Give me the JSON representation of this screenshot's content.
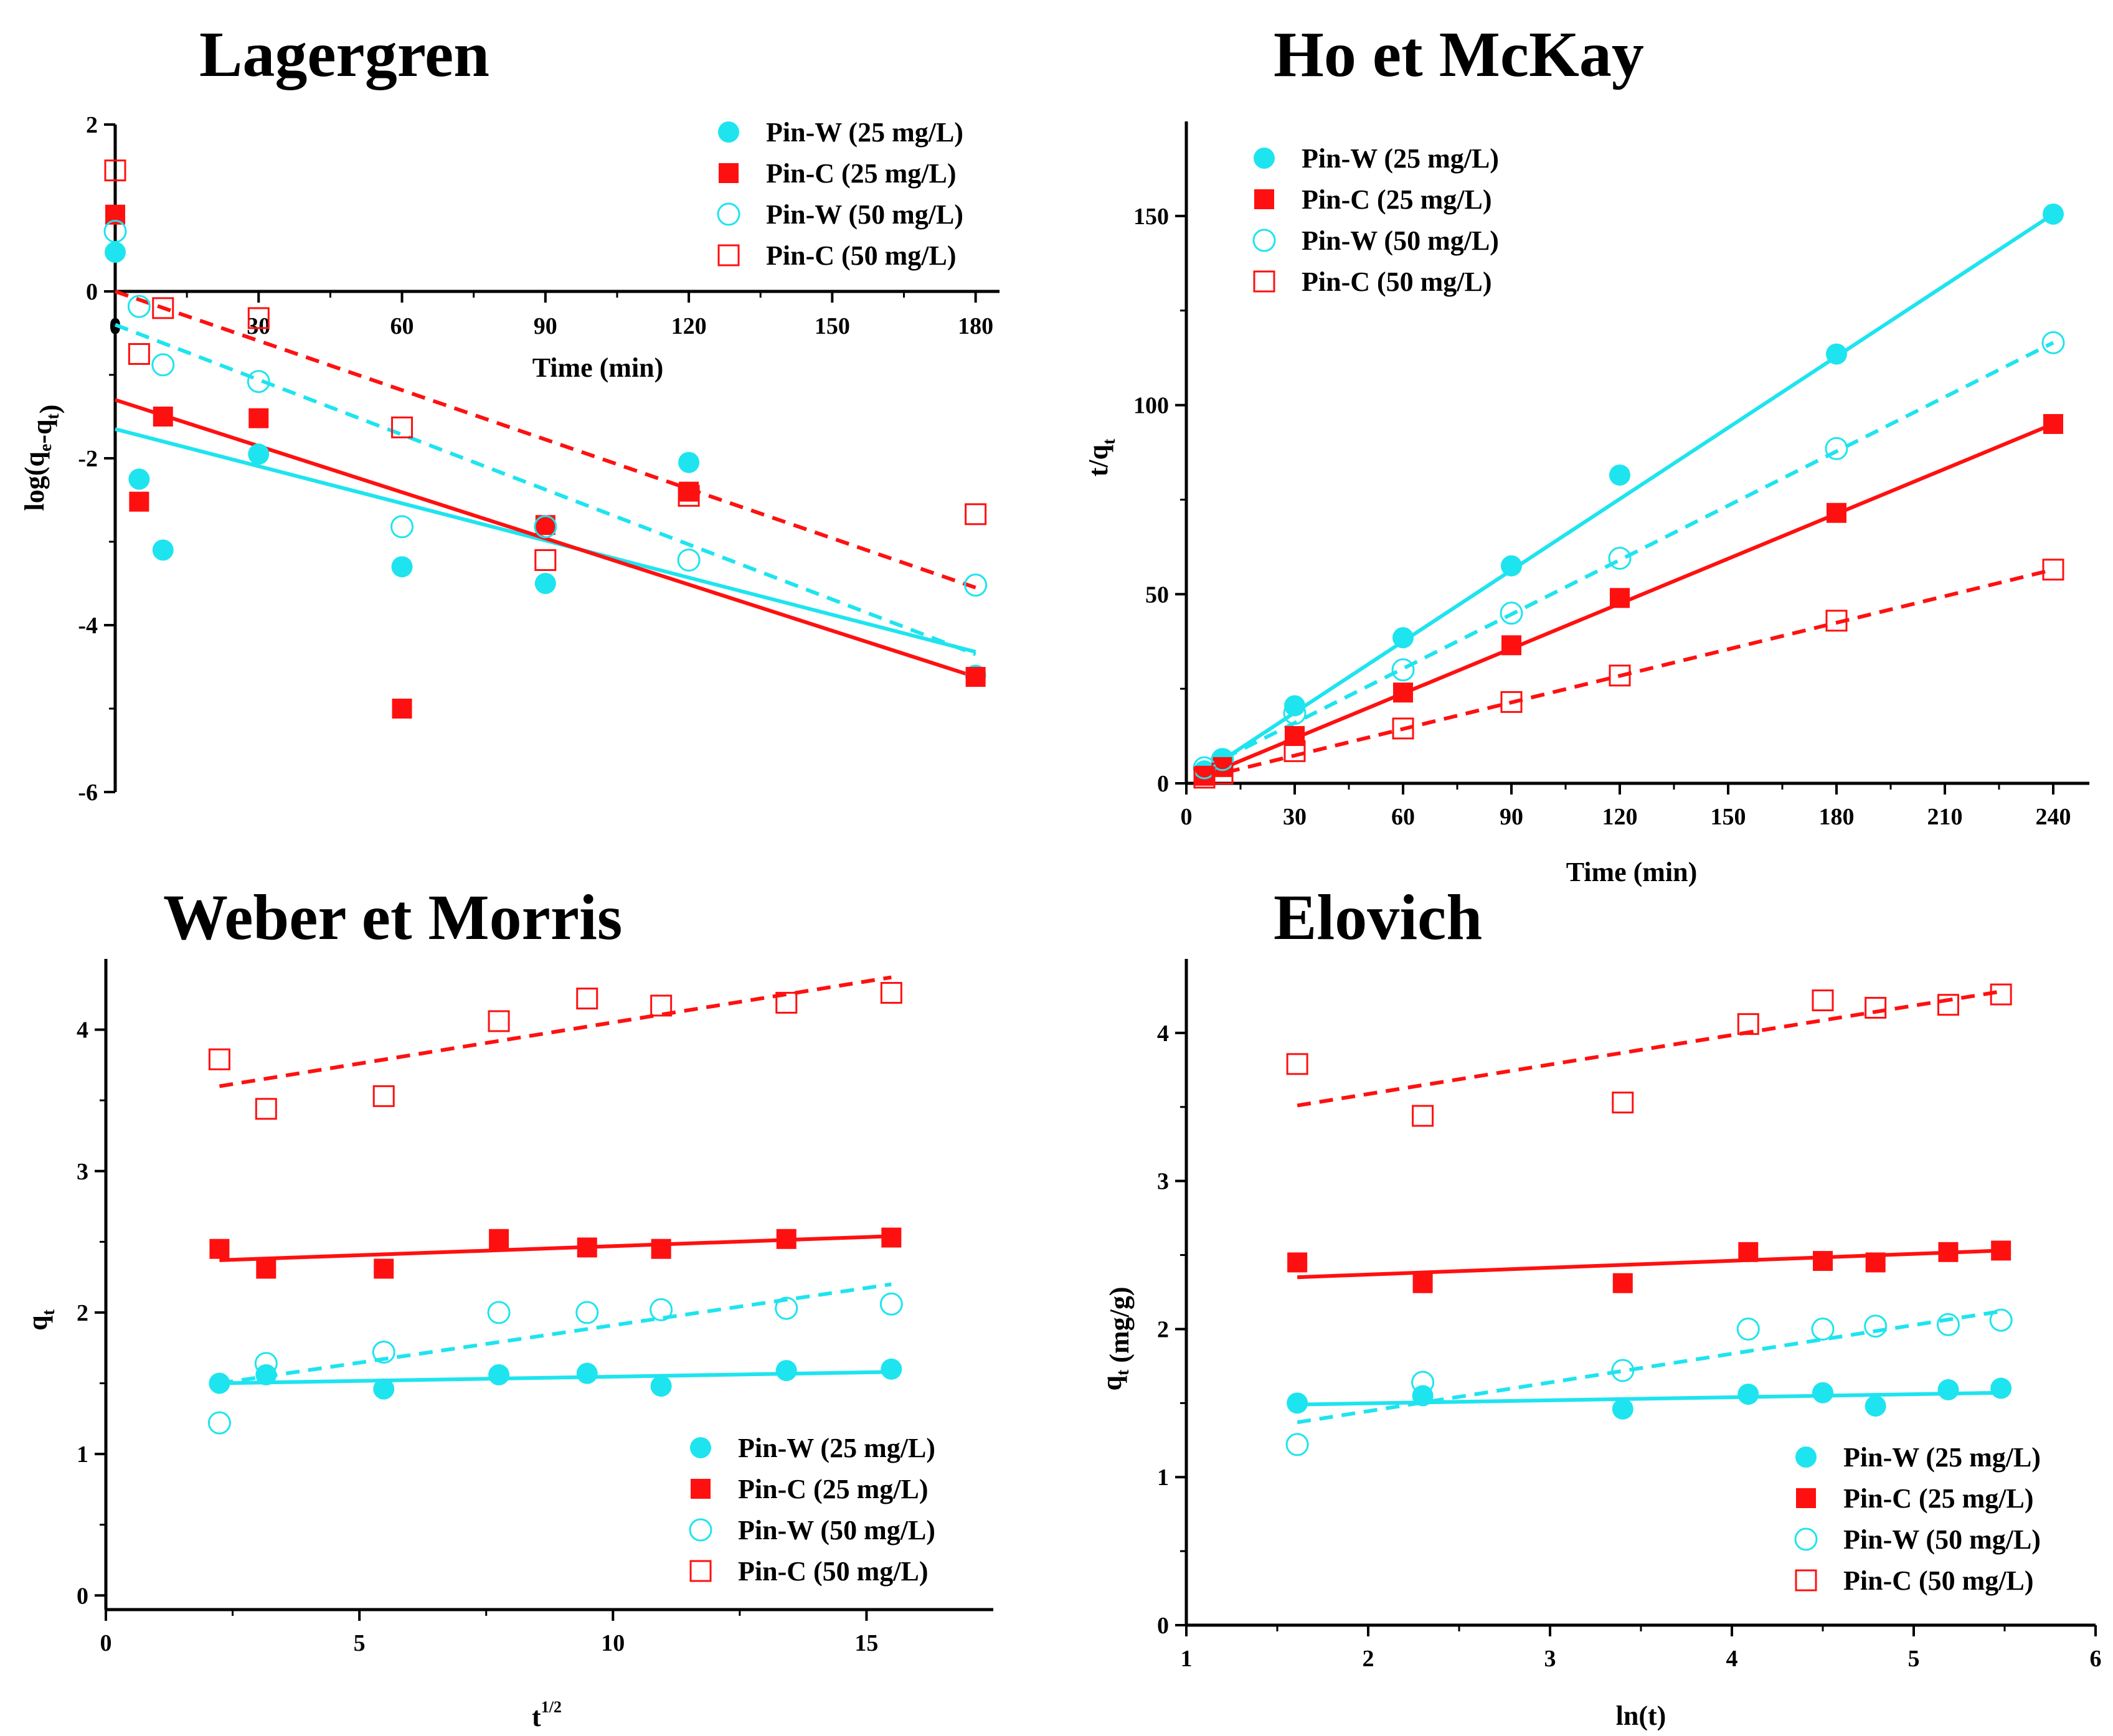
{
  "colors": {
    "cyan": "#1ee4ef",
    "red": "#ff1010",
    "axis": "#000000"
  },
  "legend_labels": [
    "Pin-W (25 mg/L)",
    "Pin-C  (25 mg/L)",
    "Pin-W (50 mg/L)",
    "Pin-C  (50 mg/L)"
  ],
  "chart_data": [
    {
      "id": "lagergren",
      "type": "scatter",
      "title": "Lagergren",
      "xlabel": "Time (min)",
      "ylabel": "log(q_e-q_t)",
      "xlim": [
        0,
        185
      ],
      "ylim": [
        -6,
        2
      ],
      "xticks": [
        0,
        30,
        60,
        90,
        120,
        150,
        180
      ],
      "xtick_labels": [
        "0",
        "30",
        "60",
        "90",
        "120",
        "150",
        "180"
      ],
      "yticks": [
        -6,
        -4,
        -2,
        0,
        2
      ],
      "ytick_labels": [
        "-6",
        "-4",
        "-2",
        "0",
        "2"
      ],
      "legend_position": "top-right",
      "series": [
        {
          "name": "Pin-W (25 mg/L)",
          "marker": "circle-filled",
          "x": [
            0,
            5,
            10,
            30,
            60,
            90,
            120,
            180
          ],
          "y": [
            0.47,
            -2.25,
            -3.1,
            -1.95,
            -3.3,
            -3.5,
            -2.05,
            -4.6
          ],
          "fit": {
            "x": [
              0,
              180
            ],
            "y": [
              -1.65,
              -4.32
            ],
            "dash": false
          }
        },
        {
          "name": "Pin-C  (25 mg/L)",
          "marker": "square-filled",
          "x": [
            0,
            5,
            10,
            30,
            60,
            90,
            120,
            180
          ],
          "y": [
            0.92,
            -2.52,
            -1.5,
            -1.52,
            -5.0,
            -2.8,
            -2.4,
            -4.62
          ],
          "fit": {
            "x": [
              0,
              180
            ],
            "y": [
              -1.3,
              -4.62
            ],
            "dash": false
          }
        },
        {
          "name": "Pin-W (50 mg/L)",
          "marker": "circle-open",
          "x": [
            0,
            5,
            10,
            30,
            60,
            90,
            120,
            180
          ],
          "y": [
            0.72,
            -0.18,
            -0.88,
            -1.08,
            -2.82,
            -2.82,
            -3.22,
            -3.52
          ],
          "fit": {
            "x": [
              0,
              180
            ],
            "y": [
              -0.4,
              -4.35
            ],
            "dash": true
          }
        },
        {
          "name": "Pin-C  (50 mg/L)",
          "marker": "square-open",
          "x": [
            0,
            5,
            10,
            30,
            60,
            90,
            120,
            180
          ],
          "y": [
            1.45,
            -0.75,
            -0.2,
            -0.32,
            -1.63,
            -3.22,
            -2.45,
            -2.67
          ],
          "fit": {
            "x": [
              0,
              180
            ],
            "y": [
              0.0,
              -3.55
            ],
            "dash": true
          }
        }
      ]
    },
    {
      "id": "ho-mckay",
      "type": "scatter",
      "title": "Ho et McKay",
      "xlabel": "Time (min)",
      "ylabel": "t/q_t",
      "xlim": [
        0,
        250
      ],
      "ylim": [
        0,
        175
      ],
      "xticks": [
        0,
        30,
        60,
        90,
        120,
        150,
        180,
        210,
        240
      ],
      "xtick_labels": [
        "0",
        "30",
        "60",
        "90",
        "120",
        "150",
        "180",
        "210",
        "240"
      ],
      "yticks": [
        0,
        50,
        100,
        150
      ],
      "ytick_labels": [
        "0",
        "50",
        "100",
        "150"
      ],
      "legend_position": "top-left",
      "series": [
        {
          "name": "Pin-W (25 mg/L)",
          "marker": "circle-filled",
          "x": [
            5,
            10,
            30,
            60,
            90,
            120,
            180,
            240
          ],
          "y": [
            3.3,
            6.5,
            20.5,
            38.5,
            57.5,
            81.5,
            113.5,
            150.5
          ],
          "fit": {
            "x": [
              5,
              240
            ],
            "y": [
              3,
              150.5
            ],
            "dash": false
          }
        },
        {
          "name": "Pin-C  (25 mg/L)",
          "marker": "square-filled",
          "x": [
            5,
            10,
            30,
            60,
            90,
            120,
            180,
            240
          ],
          "y": [
            2,
            4.3,
            12.5,
            24,
            36.5,
            49,
            71.5,
            95
          ],
          "fit": {
            "x": [
              5,
              240
            ],
            "y": [
              2,
              95
            ],
            "dash": false
          }
        },
        {
          "name": "Pin-W (50 mg/L)",
          "marker": "circle-open",
          "x": [
            5,
            10,
            30,
            60,
            90,
            120,
            180,
            240
          ],
          "y": [
            4.1,
            6.3,
            18.5,
            30,
            45,
            59.5,
            88.5,
            116.5
          ],
          "fit": {
            "x": [
              5,
              240
            ],
            "y": [
              4,
              116.5
            ],
            "dash": true
          }
        },
        {
          "name": "Pin-C  (50 mg/L)",
          "marker": "square-open",
          "x": [
            5,
            10,
            30,
            60,
            90,
            120,
            180,
            240
          ],
          "y": [
            1.5,
            2.6,
            8.5,
            14.5,
            21.5,
            28.5,
            43,
            56.5
          ],
          "fit": {
            "x": [
              5,
              240
            ],
            "y": [
              1.5,
              56.5
            ],
            "dash": true
          }
        }
      ]
    },
    {
      "id": "weber-morris",
      "type": "scatter",
      "title": "Weber et Morris",
      "xlabel": "t^1/2",
      "ylabel": "q_t",
      "xlim": [
        0,
        17.5
      ],
      "ylim": [
        -0.1,
        4.5
      ],
      "xticks": [
        0,
        5,
        10,
        15
      ],
      "xtick_labels": [
        "0",
        "5",
        "10",
        "15"
      ],
      "yticks": [
        0,
        1,
        2,
        3,
        4
      ],
      "ytick_labels": [
        "0",
        "1",
        "2",
        "3",
        "4"
      ],
      "legend_position": "bottom-right",
      "series": [
        {
          "name": "Pin-W (25 mg/L)",
          "marker": "circle-filled",
          "x": [
            2.24,
            3.16,
            5.48,
            7.75,
            9.49,
            10.95,
            13.42,
            15.49
          ],
          "y": [
            1.5,
            1.56,
            1.46,
            1.56,
            1.57,
            1.48,
            1.59,
            1.6
          ],
          "fit": {
            "x": [
              2.24,
              15.49
            ],
            "y": [
              1.5,
              1.58
            ],
            "dash": false
          }
        },
        {
          "name": "Pin-C  (25 mg/L)",
          "marker": "square-filled",
          "x": [
            2.24,
            3.16,
            5.48,
            7.75,
            9.49,
            10.95,
            13.42,
            15.49
          ],
          "y": [
            2.45,
            2.31,
            2.31,
            2.52,
            2.46,
            2.45,
            2.52,
            2.53
          ],
          "fit": {
            "x": [
              2.24,
              15.49
            ],
            "y": [
              2.37,
              2.54
            ],
            "dash": false
          }
        },
        {
          "name": "Pin-W (50 mg/L)",
          "marker": "circle-open",
          "x": [
            2.24,
            3.16,
            5.48,
            7.75,
            9.49,
            10.95,
            13.42,
            15.49
          ],
          "y": [
            1.22,
            1.64,
            1.72,
            2.0,
            2.0,
            2.02,
            2.03,
            2.06
          ],
          "fit": {
            "x": [
              2.24,
              15.49
            ],
            "y": [
              1.5,
              2.2
            ],
            "dash": true
          }
        },
        {
          "name": "Pin-C  (50 mg/L)",
          "marker": "square-open",
          "x": [
            2.24,
            3.16,
            5.48,
            7.75,
            9.49,
            10.95,
            13.42,
            15.49
          ],
          "y": [
            3.79,
            3.44,
            3.53,
            4.06,
            4.22,
            4.17,
            4.19,
            4.26
          ],
          "fit": {
            "x": [
              2.24,
              15.49
            ],
            "y": [
              3.6,
              4.37
            ],
            "dash": true
          }
        }
      ]
    },
    {
      "id": "elovich",
      "type": "scatter",
      "title": "Elovich",
      "xlabel": "ln(t)",
      "ylabel": "q_t (mg/g)",
      "xlim": [
        1,
        6
      ],
      "ylim": [
        0,
        4.5
      ],
      "xticks": [
        1,
        2,
        3,
        4,
        5,
        6
      ],
      "xtick_labels": [
        "1",
        "2",
        "3",
        "4",
        "5",
        "6"
      ],
      "yticks": [
        0,
        1,
        2,
        3,
        4
      ],
      "ytick_labels": [
        "0",
        "1",
        "2",
        "3",
        "4"
      ],
      "legend_position": "bottom-right",
      "series": [
        {
          "name": "Pin-W (25 mg/L)",
          "marker": "circle-filled",
          "x": [
            1.61,
            2.3,
            3.4,
            4.09,
            4.5,
            4.79,
            5.19,
            5.48
          ],
          "y": [
            1.5,
            1.55,
            1.46,
            1.56,
            1.57,
            1.48,
            1.59,
            1.6
          ],
          "fit": {
            "x": [
              1.61,
              5.48
            ],
            "y": [
              1.49,
              1.57
            ],
            "dash": false
          }
        },
        {
          "name": "Pin-C  (25 mg/L)",
          "marker": "square-filled",
          "x": [
            1.61,
            2.3,
            3.4,
            4.09,
            4.5,
            4.79,
            5.19,
            5.48
          ],
          "y": [
            2.45,
            2.31,
            2.31,
            2.52,
            2.46,
            2.45,
            2.52,
            2.53
          ],
          "fit": {
            "x": [
              1.61,
              5.48
            ],
            "y": [
              2.35,
              2.53
            ],
            "dash": false
          }
        },
        {
          "name": "Pin-W (50 mg/L)",
          "marker": "circle-open",
          "x": [
            1.61,
            2.3,
            3.4,
            4.09,
            4.5,
            4.79,
            5.19,
            5.48
          ],
          "y": [
            1.22,
            1.64,
            1.72,
            2.0,
            2.0,
            2.02,
            2.03,
            2.06
          ],
          "fit": {
            "x": [
              1.61,
              5.48
            ],
            "y": [
              1.37,
              2.12
            ],
            "dash": true
          }
        },
        {
          "name": "Pin-C  (50 mg/L)",
          "marker": "square-open",
          "x": [
            1.61,
            2.3,
            3.4,
            4.09,
            4.5,
            4.79,
            5.19,
            5.48
          ],
          "y": [
            3.79,
            3.44,
            3.53,
            4.06,
            4.22,
            4.17,
            4.19,
            4.26
          ],
          "fit": {
            "x": [
              1.61,
              5.48
            ],
            "y": [
              3.51,
              4.28
            ],
            "dash": true
          }
        }
      ]
    }
  ]
}
